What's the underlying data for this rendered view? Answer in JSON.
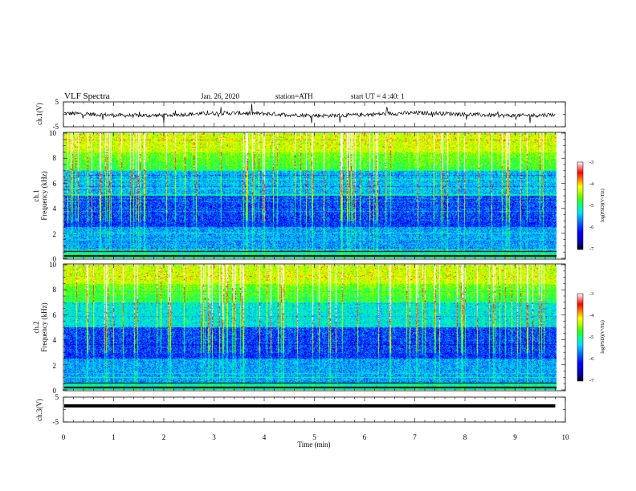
{
  "header": {
    "title": "VLF  Spectra",
    "date": "Jan. 26, 2020",
    "station": "station=ATH",
    "start": "start UT =  4 :40: 1"
  },
  "chart_data": [
    {
      "type": "line",
      "name": "ch1-waveform",
      "ylabel": "ch.1(V)",
      "ylim": [
        -5,
        5
      ],
      "yticks": [
        "5",
        "-5"
      ],
      "baseline": 0,
      "xlim": [
        0,
        9.8
      ]
    },
    {
      "type": "heatmap",
      "name": "ch1-spectrogram",
      "ylabel": "ch.1\nFrequency (kHz)",
      "ylim": [
        0,
        10
      ],
      "yticks": [
        "0",
        "2",
        "4",
        "6",
        "8",
        "10"
      ],
      "xlim": [
        0,
        9.8
      ],
      "colorbar": {
        "label": "log(PSD)(V²/Hz)",
        "range": [
          -7,
          -3
        ],
        "ticks": [
          "-3",
          "-4",
          "-5",
          "-6",
          "-7"
        ]
      }
    },
    {
      "type": "heatmap",
      "name": "ch2-spectrogram",
      "ylabel": "ch.2\nFrequency (kHz)",
      "ylim": [
        0,
        10
      ],
      "yticks": [
        "0",
        "2",
        "4",
        "6",
        "8",
        "10"
      ],
      "xlim": [
        0,
        9.8
      ],
      "colorbar": {
        "label": "log(PSD)(V²/Hz)",
        "range": [
          -7,
          -3
        ],
        "ticks": [
          "-3",
          "-4",
          "-5",
          "-6",
          "-7"
        ]
      }
    },
    {
      "type": "line",
      "name": "ch3-waveform",
      "ylabel": "ch.3(V)",
      "ylim": [
        -5,
        5
      ],
      "yticks": [
        "5",
        "-5"
      ],
      "baseline": 1.5,
      "xlim": [
        0,
        9.8
      ]
    }
  ],
  "xaxis": {
    "label": "Time (min)",
    "range": [
      0,
      10
    ],
    "ticks": [
      "0",
      "1",
      "2",
      "3",
      "4",
      "5",
      "6",
      "7",
      "8",
      "9",
      "10"
    ]
  },
  "colors": {
    "colormap": [
      "#000000",
      "#0000b0",
      "#0000ff",
      "#0080ff",
      "#00e0ff",
      "#00ff90",
      "#40ff00",
      "#c0ff00",
      "#ffff00",
      "#ff8000",
      "#ff0000",
      "#ffffff"
    ],
    "trace": "#000000"
  }
}
